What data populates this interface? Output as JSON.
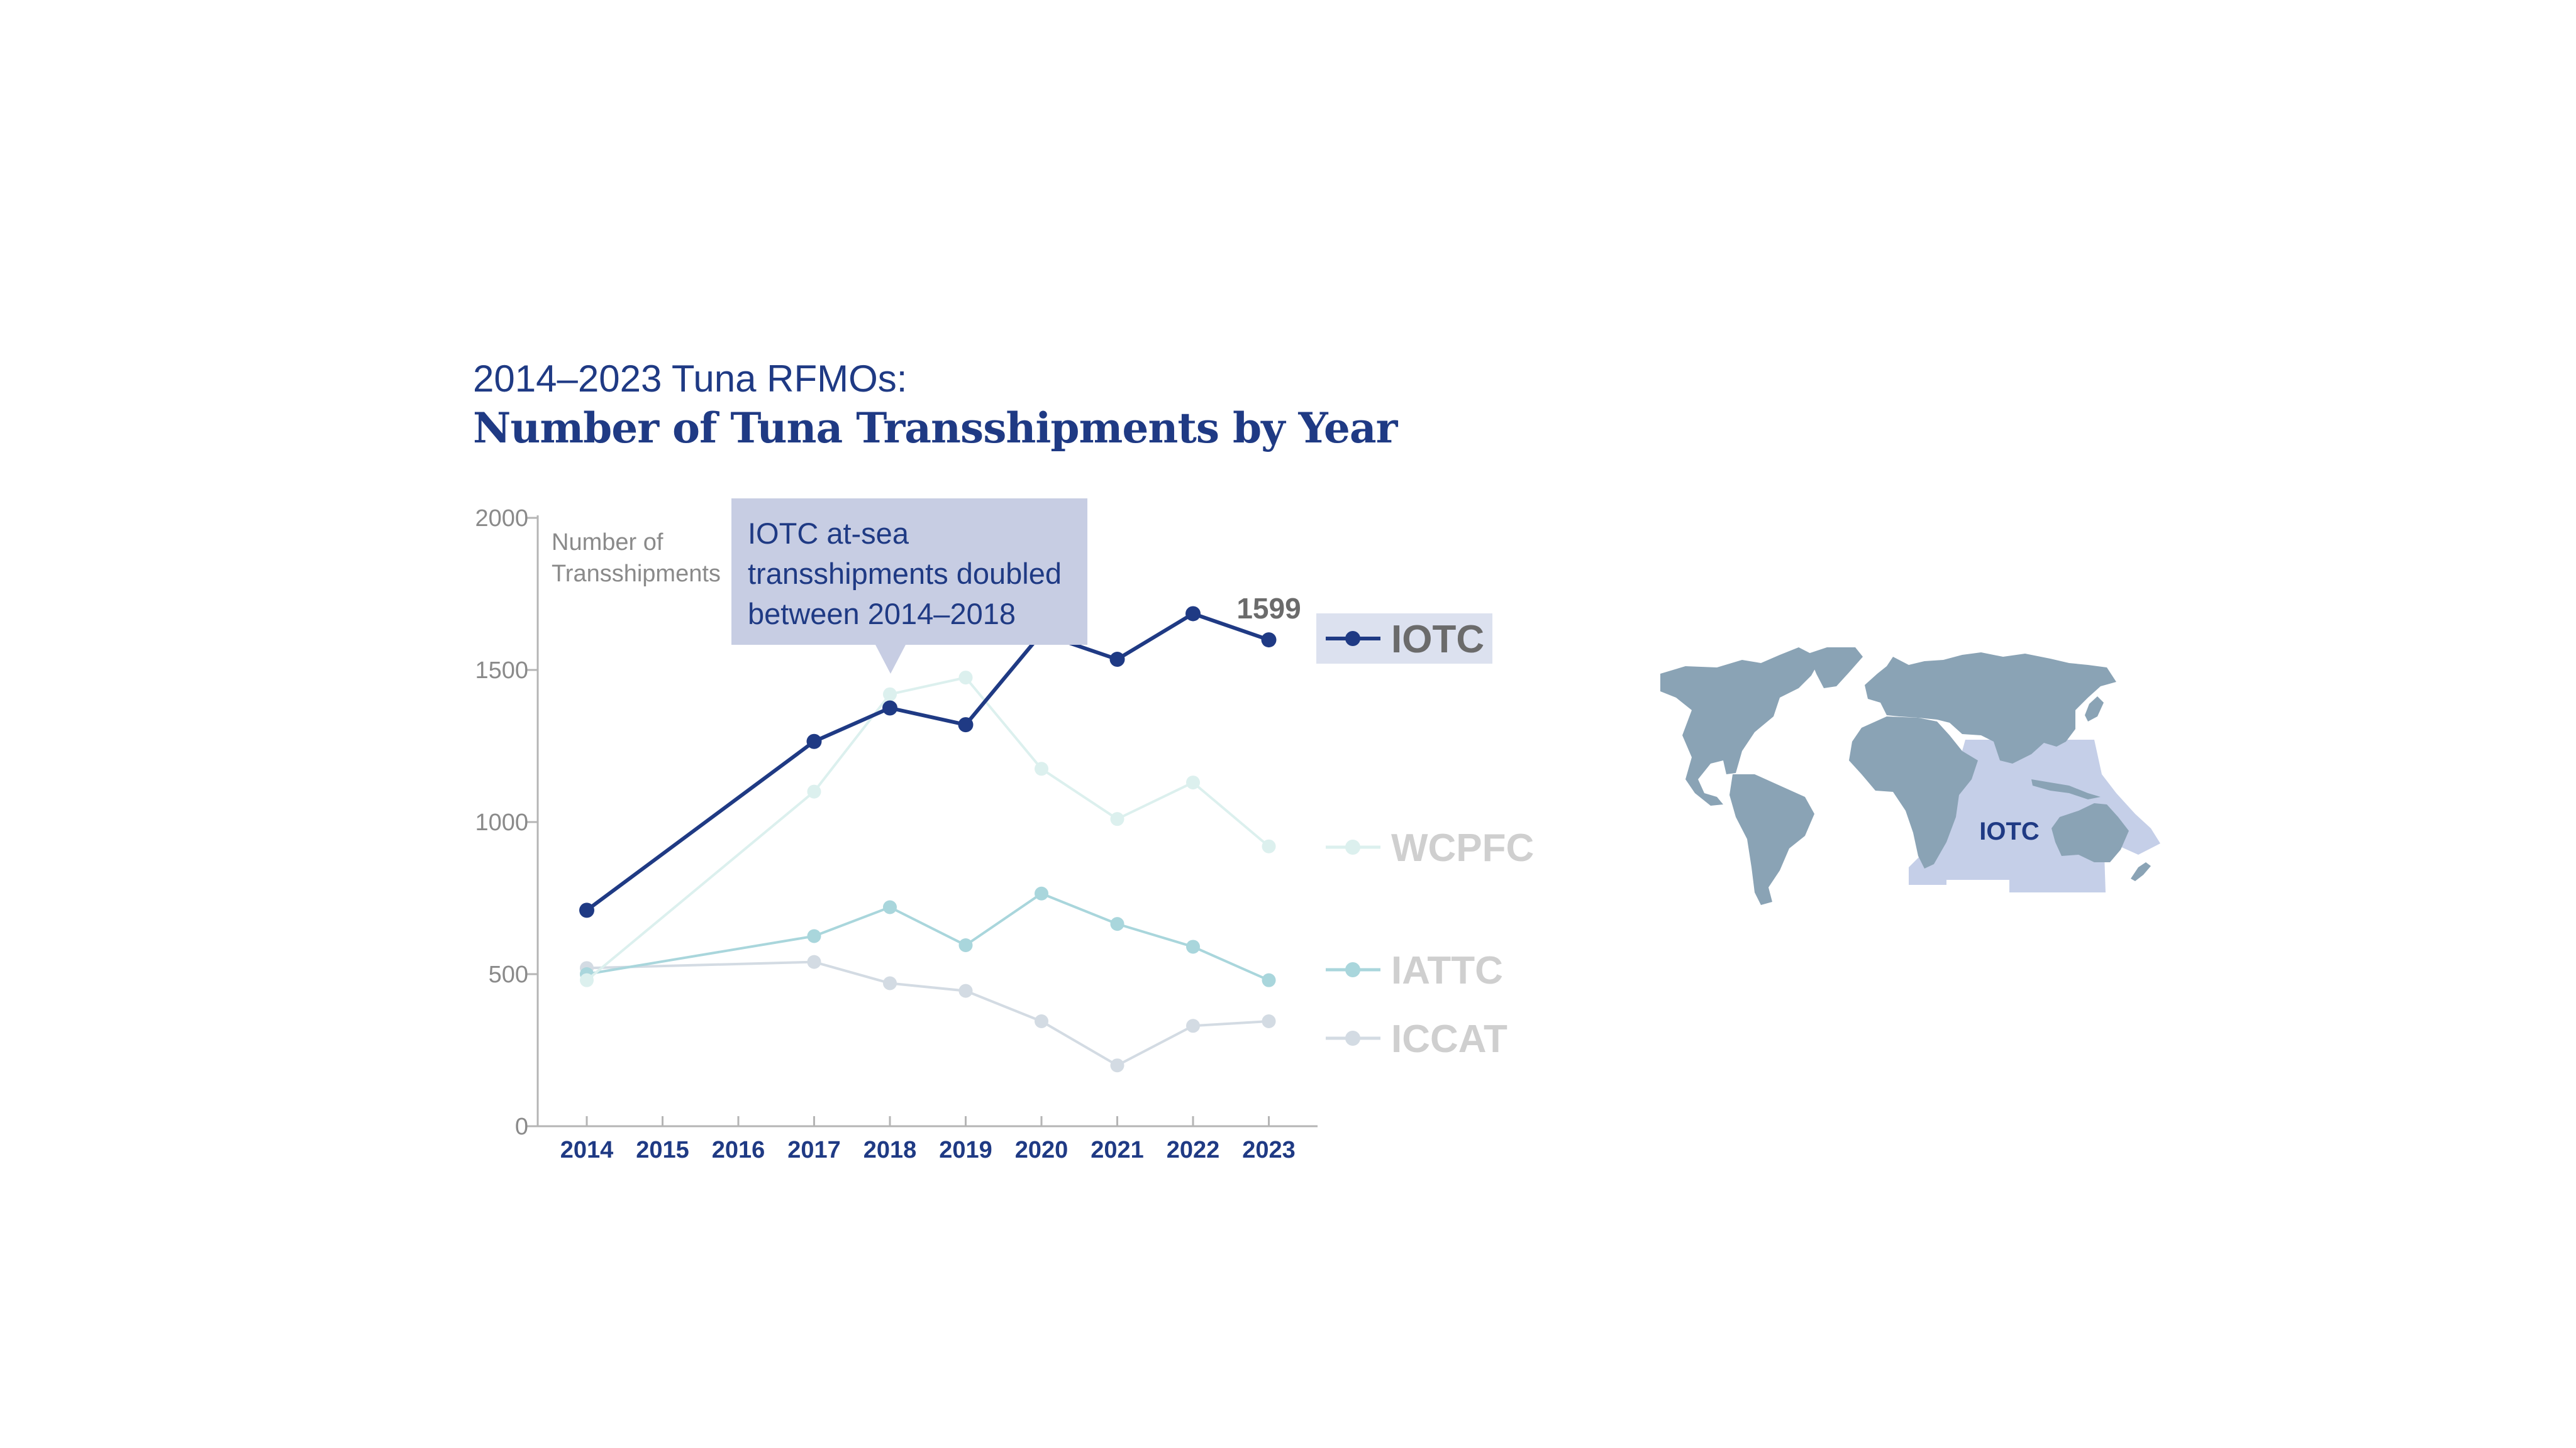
{
  "header": {
    "subtitle": "2014–2023 Tuna RFMOs:",
    "title": "Number of Tuna Transshipments by Year"
  },
  "callout": {
    "line1": "IOTC at-sea",
    "line2": "transshipments doubled",
    "line3": "between 2014–2018"
  },
  "map": {
    "label": "IOTC",
    "land_color": "#8aa3b5",
    "region_color": "#c5cfe8"
  },
  "chart_data": {
    "type": "line",
    "title": "Number of Tuna Transshipments by Year",
    "subtitle": "2014–2023 Tuna RFMOs:",
    "ylabel": "Number of Transshipments",
    "ylabel_lines": [
      "Number of",
      "Transshipments"
    ],
    "xlabel": "",
    "x": [
      2014,
      2015,
      2016,
      2017,
      2018,
      2019,
      2020,
      2021,
      2022,
      2023
    ],
    "ylim": [
      0,
      2000
    ],
    "yticks": [
      0,
      500,
      1000,
      1500,
      2000
    ],
    "grid": false,
    "legend_position": "right",
    "series": [
      {
        "name": "ICCAT",
        "color": "#d3dbe3",
        "x": [
          2014,
          2017,
          2018,
          2019,
          2020,
          2021,
          2022,
          2023
        ],
        "values": [
          520,
          540,
          470,
          445,
          345,
          200,
          330,
          345
        ]
      },
      {
        "name": "IATTC",
        "color": "#a9d6dc",
        "x": [
          2014,
          2017,
          2018,
          2019,
          2020,
          2021,
          2022,
          2023
        ],
        "values": [
          500,
          625,
          720,
          595,
          765,
          665,
          590,
          480
        ]
      },
      {
        "name": "WCPFC",
        "color": "#dcf0ee",
        "x": [
          2014,
          2017,
          2018,
          2019,
          2020,
          2021,
          2022,
          2023
        ],
        "values": [
          480,
          1100,
          1420,
          1475,
          1175,
          1010,
          1130,
          920
        ]
      },
      {
        "name": "IOTC",
        "color": "#1f3a84",
        "x": [
          2014,
          2017,
          2018,
          2019,
          2020,
          2021,
          2022,
          2023
        ],
        "values": [
          710,
          1265,
          1375,
          1320,
          1620,
          1535,
          1685,
          1599
        ]
      }
    ],
    "annotations": [
      {
        "series": "IOTC",
        "x": 2023,
        "text": "1599"
      },
      {
        "text": "IOTC at-sea transshipments doubled between 2014–2018"
      }
    ],
    "highlight_series": "IOTC",
    "highlight_color": "#dce1ef"
  }
}
